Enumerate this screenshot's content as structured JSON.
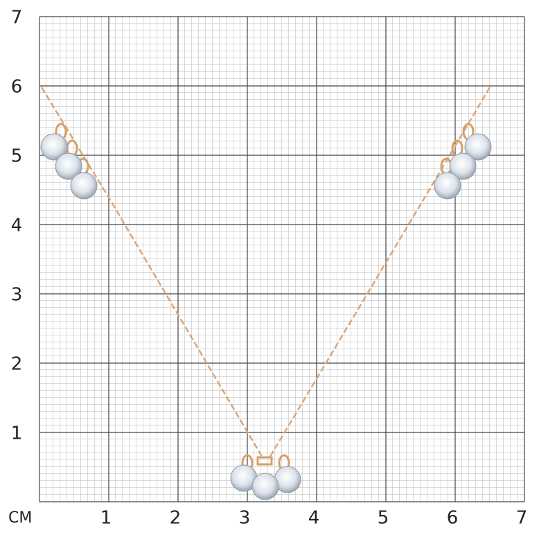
{
  "scale": {
    "unit": "СМ",
    "x_labels": [
      1,
      2,
      3,
      4,
      5,
      6,
      7
    ],
    "y_labels": [
      1,
      2,
      3,
      4,
      5,
      6,
      7
    ]
  }
}
